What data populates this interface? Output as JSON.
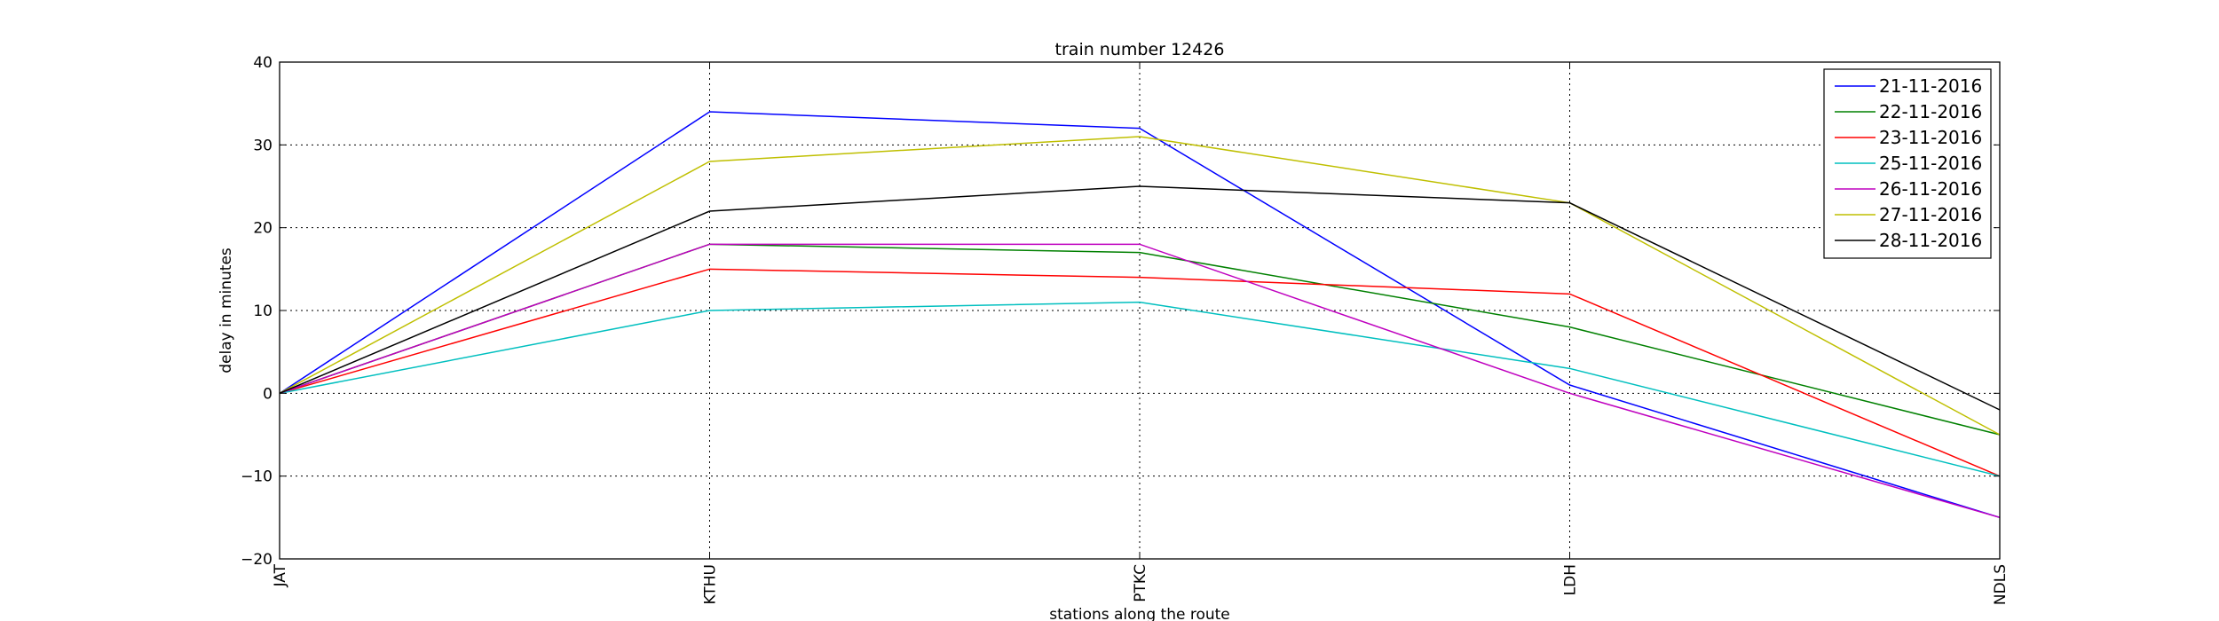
{
  "chart_data": {
    "type": "line",
    "title": "train number 12426",
    "xlabel": "stations along the route",
    "ylabel": "delay in minutes",
    "categories": [
      "JAT",
      "KTHU",
      "PTKC",
      "LDH",
      "NDLS"
    ],
    "ylim": [
      -20,
      40
    ],
    "yticks": [
      "40",
      "30",
      "20",
      "10",
      "0",
      "−10",
      "−20"
    ],
    "grid": true,
    "legend_position": "top-right",
    "series": [
      {
        "name": "21-11-2016",
        "color": "#0000ff",
        "values": [
          0,
          34,
          32,
          1,
          -15
        ]
      },
      {
        "name": "22-11-2016",
        "color": "#008000",
        "values": [
          0,
          18,
          17,
          8,
          -5
        ]
      },
      {
        "name": "23-11-2016",
        "color": "#ff0000",
        "values": [
          0,
          15,
          14,
          12,
          -10
        ]
      },
      {
        "name": "25-11-2016",
        "color": "#00bfbf",
        "values": [
          0,
          10,
          11,
          3,
          -10
        ]
      },
      {
        "name": "26-11-2016",
        "color": "#bf00bf",
        "values": [
          0,
          18,
          18,
          0,
          -15
        ]
      },
      {
        "name": "27-11-2016",
        "color": "#bfbf00",
        "values": [
          0,
          28,
          31,
          23,
          -5
        ]
      },
      {
        "name": "28-11-2016",
        "color": "#000000",
        "values": [
          0,
          22,
          25,
          23,
          -2
        ]
      }
    ]
  }
}
